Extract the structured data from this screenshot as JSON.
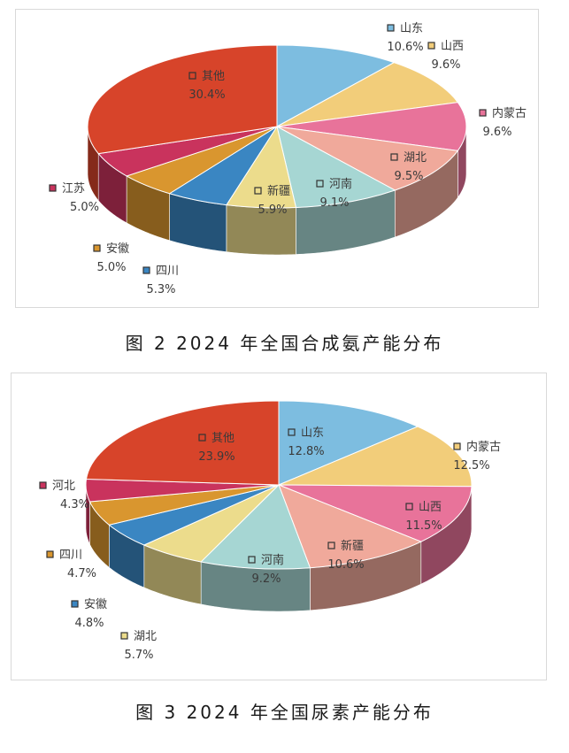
{
  "chart_data": [
    {
      "type": "pie",
      "title": "图 2  2024 年全国合成氨产能分布",
      "categories": [
        "山东",
        "山西",
        "内蒙古",
        "湖北",
        "河南",
        "新疆",
        "四川",
        "安徽",
        "江苏",
        "其他"
      ],
      "values": [
        10.6,
        9.6,
        9.6,
        9.5,
        9.1,
        5.9,
        5.3,
        5.0,
        5.0,
        30.4
      ],
      "labels": [
        "10.6%",
        "9.6%",
        "9.6%",
        "9.5%",
        "9.1%",
        "5.9%",
        "5.3%",
        "5.0%",
        "5.0%",
        "30.4%"
      ],
      "colors": [
        "#7dbde0",
        "#f2cd7a",
        "#e8739a",
        "#f0a99b",
        "#a6d6d3",
        "#ecdc8c",
        "#3a86c2",
        "#d9962f",
        "#c9335d",
        "#d7442a"
      ],
      "legend": "none",
      "grid": false
    },
    {
      "type": "pie",
      "title": "图 3  2024 年全国尿素产能分布",
      "categories": [
        "山东",
        "内蒙古",
        "山西",
        "新疆",
        "河南",
        "湖北",
        "安徽",
        "四川",
        "河北",
        "其他"
      ],
      "values": [
        12.8,
        12.5,
        11.5,
        10.6,
        9.2,
        5.7,
        4.8,
        4.7,
        4.3,
        23.9
      ],
      "labels": [
        "12.8%",
        "12.5%",
        "11.5%",
        "10.6%",
        "9.2%",
        "5.7%",
        "4.8%",
        "4.7%",
        "4.3%",
        "23.9%"
      ],
      "colors": [
        "#7dbde0",
        "#f2cd7a",
        "#e8739a",
        "#f0a99b",
        "#a6d6d3",
        "#ecdc8c",
        "#3a86c2",
        "#d9962f",
        "#c9335d",
        "#d7442a"
      ],
      "legend": "none",
      "grid": false
    }
  ]
}
